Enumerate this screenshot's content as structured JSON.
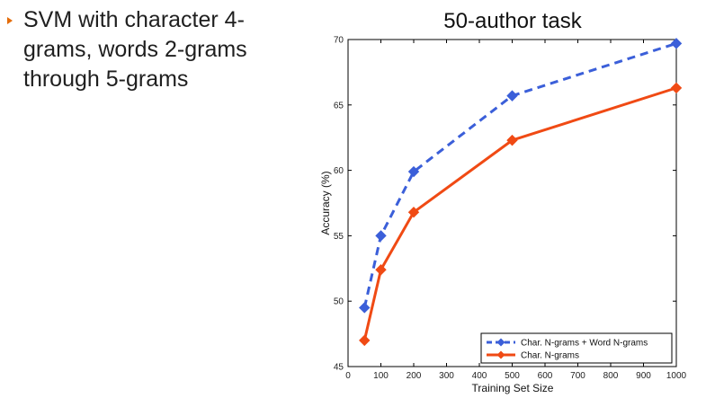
{
  "slide": {
    "bullet_text": "SVM with character 4-\ngrams, words 2-grams\nthrough 5-grams"
  },
  "colors": {
    "bullet_marker": "#e46c0a",
    "series_dashed": "#3b5fd9",
    "series_solid": "#f04a14",
    "axis": "#000000"
  },
  "chart_data": {
    "type": "line",
    "title": "50-author task",
    "xlabel": "Training Set Size",
    "ylabel": "Accuracy (%)",
    "xlim": [
      0,
      1000
    ],
    "ylim": [
      45,
      70
    ],
    "xticks": [
      0,
      100,
      200,
      300,
      400,
      500,
      600,
      700,
      800,
      900,
      1000
    ],
    "yticks": [
      45,
      50,
      55,
      60,
      65,
      70
    ],
    "grid": false,
    "legend_position": "bottom-right",
    "series": [
      {
        "name": "Char. N-grams + Word N-grams",
        "style": "dashed",
        "marker": "diamond",
        "color": "#3b5fd9",
        "x": [
          50,
          100,
          200,
          500,
          1000
        ],
        "y": [
          49.5,
          55.0,
          59.9,
          65.7,
          69.7
        ]
      },
      {
        "name": "Char. N-grams",
        "style": "solid",
        "marker": "diamond",
        "color": "#f04a14",
        "x": [
          50,
          100,
          200,
          500,
          1000
        ],
        "y": [
          47.0,
          52.4,
          56.8,
          62.3,
          66.3
        ]
      }
    ]
  }
}
